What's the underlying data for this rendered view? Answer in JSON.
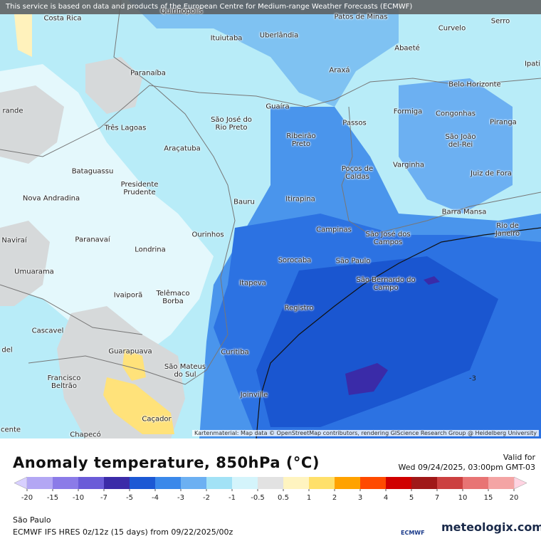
{
  "header": {
    "notice": "This service is based on data and products of the European Centre for Medium-range Weather Forecasts (ECMWF)"
  },
  "map": {
    "cities": [
      "Costa Rica",
      "Quirinópolis",
      "Patos de Minas",
      "Curvelo",
      "Serro",
      "Ituiutaba",
      "Uberlândia",
      "Abaeté",
      "Paranaíba",
      "Araxá",
      "Ipati",
      "Belo Horizonte",
      "Guaíra",
      "Formiga",
      "Congonhas",
      "rande",
      "Três Lagoas",
      "São José do Rio Preto",
      "Passos",
      "Ribeirão Preto",
      "São João del-Rei",
      "Piranga",
      "Araçatuba",
      "Poços de Caldas",
      "Varginha",
      "Juiz de Fora",
      "Bataguassu",
      "Presidente Prudente",
      "Nova Andradina",
      "Bauru",
      "Itirapina",
      "Barra Mansa",
      "Campinas",
      "São José dos Campos",
      "Rio de Janeiro",
      "Naviraí",
      "Paranavaí",
      "Ourinhos",
      "Londrina",
      "Sorocaba",
      "São Paulo",
      "São Bernardo do Campo",
      "Umuarama",
      "Itapeva",
      "Ivaiporã",
      "Telêmaco Borba",
      "Registro",
      "Cascavel",
      "del",
      "Guarapuava",
      "Curitiba",
      "Francisco Beltrão",
      "São Mateus do Sul",
      "Joinville",
      "Caçador",
      "cente",
      "Chapecó"
    ],
    "contour_label": "-3",
    "attribution": "Kartenmaterial: Map data © OpenStreetMap contributors, rendering GIScience Research Group @ Heidelberg University"
  },
  "legend": {
    "title": "Anomaly temperature, 850hPa (°C)",
    "valid_label": "Valid for",
    "valid_time": "Wed 09/24/2025, 03:00pm GMT-03",
    "ticks": [
      "-20",
      "-15",
      "-10",
      "-7",
      "-5",
      "-4",
      "-3",
      "-2",
      "-1",
      "-0.5",
      "0.5",
      "1",
      "2",
      "3",
      "4",
      "5",
      "7",
      "10",
      "15",
      "20"
    ],
    "colors": [
      "#b3a7f4",
      "#8b7be8",
      "#6a5bd8",
      "#3b2ba8",
      "#1c58d4",
      "#3a88ea",
      "#6cb0f2",
      "#a2e2f6",
      "#d4f4fb",
      "#e2e2e2",
      "#fff4c0",
      "#ffe06a",
      "#ffa200",
      "#ff4a00",
      "#d00000",
      "#a01818",
      "#cc4040",
      "#e87474",
      "#f4a4a4"
    ],
    "low_color": "#d8d0ff",
    "high_color": "#ffd4e2"
  },
  "footer": {
    "location": "São Paulo",
    "model": "ECMWF IFS HRES 0z/12z (15 days) from 09/22/2025/00z",
    "logo_left": "ECMWF",
    "logo_right": "meteologix.com"
  }
}
